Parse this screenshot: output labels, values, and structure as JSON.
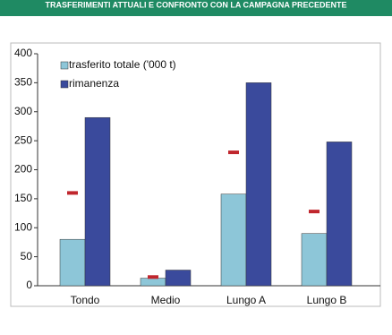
{
  "header": {
    "title": "TRASFERIMENTI ATTUALI E CONFRONTO CON LA CAMPAGNA PRECEDENTE"
  },
  "chart_data": {
    "type": "bar",
    "categories": [
      "Tondo",
      "Medio",
      "Lungo A",
      "Lungo B"
    ],
    "series": [
      {
        "name": "trasferito totale ('000 t)",
        "color": "#8dc6d8",
        "values": [
          80,
          13,
          158,
          90
        ]
      },
      {
        "name": "rimanenza",
        "color": "#3a4a9c",
        "values": [
          290,
          27,
          350,
          248
        ]
      }
    ],
    "reference_marks": {
      "color": "#c0262d",
      "values": [
        160,
        15,
        230,
        128
      ]
    },
    "ylim": [
      0,
      400
    ],
    "yticks": [
      0,
      50,
      100,
      150,
      200,
      250,
      300,
      350,
      400
    ],
    "grid": false,
    "legend": "top-left"
  }
}
